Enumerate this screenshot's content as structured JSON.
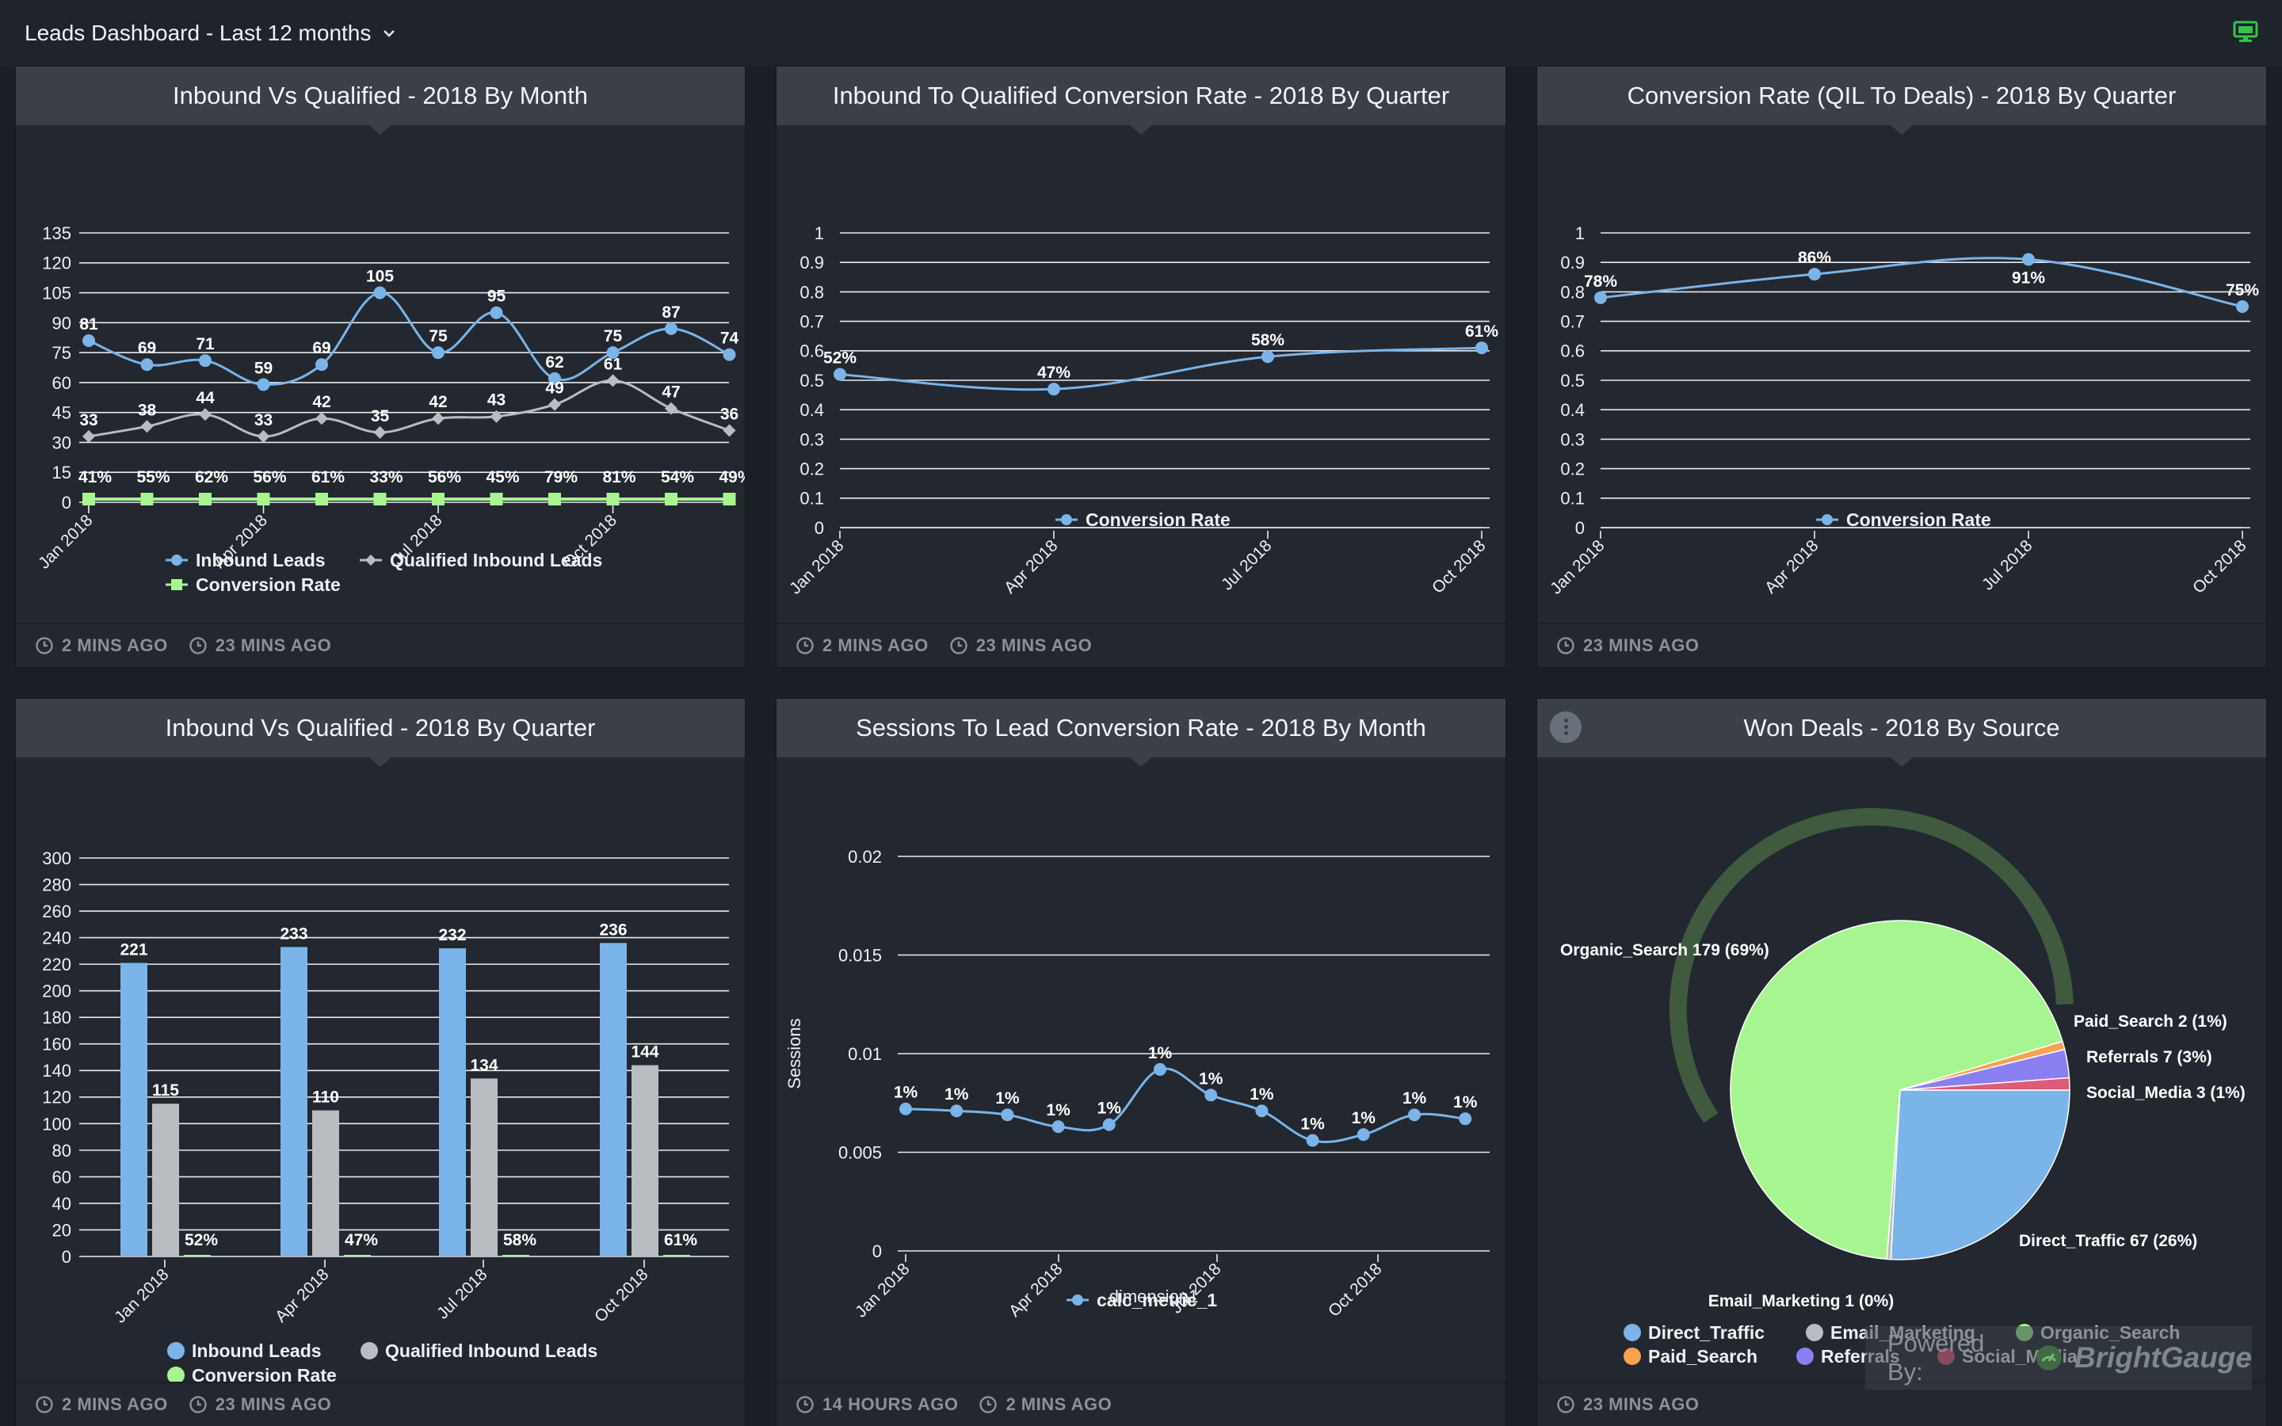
{
  "header": {
    "title": "Leads Dashboard - Last 12 months",
    "caret_icon": "chevron-down-icon",
    "monitor_icon": "monitor-icon"
  },
  "colors": {
    "blue": "#7ab4e8",
    "gray": "#b9bcc1",
    "green": "#a7f590",
    "orange": "#f6a350",
    "purple": "#8a7ff0",
    "pink": "#e05a7a"
  },
  "panels": [
    {
      "title": "Inbound Vs Qualified - 2018 By Month",
      "footer": [
        "2 MINS AGO",
        "23 MINS AGO"
      ]
    },
    {
      "title": "Inbound To Qualified Conversion Rate - 2018 By Quarter",
      "footer": [
        "2 MINS AGO",
        "23 MINS AGO"
      ]
    },
    {
      "title": "Conversion Rate (QIL To Deals) - 2018 By Quarter",
      "footer": [
        "23 MINS AGO"
      ]
    },
    {
      "title": "Inbound Vs Qualified - 2018 By Quarter",
      "footer": [
        "2 MINS AGO",
        "23 MINS AGO"
      ]
    },
    {
      "title": "Sessions To Lead Conversion Rate - 2018 By Month",
      "footer": [
        "14 HOURS AGO",
        "2 MINS AGO"
      ]
    },
    {
      "title": "Won Deals - 2018 By Source",
      "footer": [
        "23 MINS AGO"
      ]
    }
  ],
  "chart_data": [
    {
      "type": "line",
      "title": "Inbound Vs Qualified - 2018 By Month",
      "x_ticks": [
        "Jan 2018",
        "Apr 2018",
        "Jul 2018",
        "Oct 2018"
      ],
      "yticks": [
        "0",
        "15",
        "30",
        "45",
        "60",
        "75",
        "90",
        "105",
        "120",
        "135"
      ],
      "ylim": [
        0,
        135
      ],
      "grid": true,
      "legend": "bottom",
      "series": [
        {
          "name": "Inbound Leads",
          "values": [
            81,
            69,
            71,
            59,
            69,
            105,
            75,
            95,
            62,
            75,
            87,
            74
          ],
          "labels": [
            "81",
            "69",
            "71",
            "59",
            "69",
            "105",
            "75",
            "95",
            "62",
            "75",
            "87",
            "74"
          ]
        },
        {
          "name": "Qualified Inbound Leads",
          "values": [
            33,
            38,
            44,
            33,
            42,
            35,
            42,
            43,
            49,
            61,
            47,
            36
          ],
          "labels": [
            "33",
            "38",
            "44",
            "33",
            "42",
            "35",
            "42",
            "43",
            "49",
            "61",
            "47",
            "36"
          ]
        },
        {
          "name": "Conversion Rate",
          "values": [
            0.41,
            0.55,
            0.62,
            0.56,
            0.61,
            0.33,
            0.56,
            0.45,
            0.79,
            0.81,
            0.54,
            0.49
          ],
          "labels": [
            "41%",
            "55%",
            "62%",
            "56%",
            "61%",
            "33%",
            "56%",
            "45%",
            "79%",
            "81%",
            "54%",
            "49%"
          ]
        }
      ]
    },
    {
      "type": "line",
      "title": "Inbound To Qualified Conversion Rate - 2018 By Quarter",
      "categories": [
        "Jan 2018",
        "Apr 2018",
        "Jul 2018",
        "Oct 2018"
      ],
      "yticks": [
        "0",
        "0.1",
        "0.2",
        "0.3",
        "0.4",
        "0.5",
        "0.6",
        "0.7",
        "0.8",
        "0.9",
        "1"
      ],
      "ylim": [
        0,
        1
      ],
      "grid": true,
      "legend": "bottom",
      "series": [
        {
          "name": "Conversion Rate",
          "values": [
            0.52,
            0.47,
            0.58,
            0.61
          ],
          "labels": [
            "52%",
            "47%",
            "58%",
            "61%"
          ]
        }
      ]
    },
    {
      "type": "line",
      "title": "Conversion Rate (QIL To Deals) - 2018 By Quarter",
      "categories": [
        "Jan 2018",
        "Apr 2018",
        "Jul 2018",
        "Oct 2018"
      ],
      "yticks": [
        "0",
        "0.1",
        "0.2",
        "0.3",
        "0.4",
        "0.5",
        "0.6",
        "0.7",
        "0.8",
        "0.9",
        "1"
      ],
      "ylim": [
        0,
        1
      ],
      "grid": true,
      "legend": "bottom",
      "series": [
        {
          "name": "Conversion Rate",
          "values": [
            0.78,
            0.86,
            0.91,
            0.75
          ],
          "labels": [
            "78%",
            "86%",
            "91%",
            "75%"
          ]
        }
      ]
    },
    {
      "type": "bar",
      "title": "Inbound Vs Qualified - 2018 By Quarter",
      "categories": [
        "Jan 2018",
        "Apr 2018",
        "Jul 2018",
        "Oct 2018"
      ],
      "yticks": [
        "0",
        "20",
        "40",
        "60",
        "80",
        "100",
        "120",
        "140",
        "160",
        "180",
        "200",
        "220",
        "240",
        "260",
        "280",
        "300"
      ],
      "ylim": [
        0,
        300
      ],
      "grid": true,
      "legend": "bottom",
      "series": [
        {
          "name": "Inbound Leads",
          "values": [
            221,
            233,
            232,
            236
          ],
          "labels": [
            "221",
            "233",
            "232",
            "236"
          ]
        },
        {
          "name": "Qualified Inbound Leads",
          "values": [
            115,
            110,
            134,
            144
          ],
          "labels": [
            "115",
            "110",
            "134",
            "144"
          ]
        },
        {
          "name": "Conversion Rate",
          "values": [
            0.52,
            0.47,
            0.58,
            0.61
          ],
          "labels": [
            "52%",
            "47%",
            "58%",
            "61%"
          ]
        }
      ]
    },
    {
      "type": "line",
      "title": "Sessions To Lead Conversion Rate - 2018 By Month",
      "x_ticks": [
        "Jan 2018",
        "Apr 2018",
        "Jul 2018",
        "Oct 2018"
      ],
      "yticks": [
        "0",
        "0.005",
        "0.01",
        "0.015",
        "0.02"
      ],
      "ylim": [
        0,
        0.02
      ],
      "ylabel": "Sessions",
      "xlabel": "dimension1",
      "grid": true,
      "legend": "bottom",
      "series": [
        {
          "name": "calc_metric_1",
          "values": [
            0.0072,
            0.0071,
            0.0069,
            0.0063,
            0.0064,
            0.0092,
            0.0079,
            0.0071,
            0.0056,
            0.0059,
            0.0069,
            0.0067
          ],
          "labels": [
            "1%",
            "1%",
            "1%",
            "1%",
            "1%",
            "1%",
            "1%",
            "1%",
            "1%",
            "1%",
            "1%",
            "1%"
          ]
        }
      ]
    },
    {
      "type": "pie",
      "title": "Won Deals - 2018 By Source",
      "legend": "bottom",
      "slices": [
        {
          "name": "Direct_Traffic",
          "value": 67,
          "label": "Direct_Traffic 67 (26%)",
          "color": "#7ab4e8"
        },
        {
          "name": "Email_Marketing",
          "value": 1,
          "label": "Email_Marketing 1 (0%)",
          "color": "#b9bcc1"
        },
        {
          "name": "Organic_Search",
          "value": 179,
          "label": "Organic_Search 179 (69%)",
          "color": "#a7f590"
        },
        {
          "name": "Paid_Search",
          "value": 2,
          "label": "Paid_Search 2 (1%)",
          "color": "#f6a350"
        },
        {
          "name": "Referrals",
          "value": 7,
          "label": "Referrals 7 (3%)",
          "color": "#8a7ff0"
        },
        {
          "name": "Social_Media",
          "value": 3,
          "label": "Social_Media 3 (1%)",
          "color": "#e05a7a"
        }
      ]
    }
  ],
  "watermark": {
    "prefix": "Powered By:",
    "brand": "BrightGauge"
  }
}
